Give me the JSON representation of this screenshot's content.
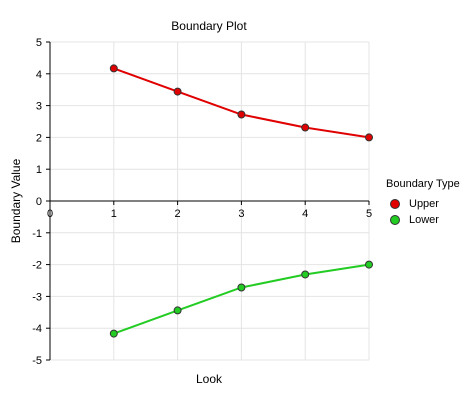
{
  "chart_data": {
    "type": "line",
    "title": "Boundary Plot",
    "xlabel": "Look",
    "ylabel": "Boundary Value",
    "x": [
      1,
      2,
      3,
      4,
      5
    ],
    "xlim": [
      0,
      5
    ],
    "ylim": [
      -5,
      5
    ],
    "xticks": [
      "0",
      "1",
      "2",
      "3",
      "4",
      "5"
    ],
    "yticks": [
      "5",
      "4",
      "3",
      "2",
      "1",
      "0",
      "-1",
      "-2",
      "-3",
      "-4",
      "-5"
    ],
    "grid": true,
    "legend_title": "Boundary Type",
    "legend_position": "right",
    "series": [
      {
        "name": "Upper",
        "color": "#e00000",
        "values": [
          4.17,
          3.44,
          2.72,
          2.31,
          2.0
        ]
      },
      {
        "name": "Lower",
        "color": "#22cc22",
        "values": [
          -4.17,
          -3.44,
          -2.72,
          -2.31,
          -2.0
        ]
      }
    ]
  }
}
